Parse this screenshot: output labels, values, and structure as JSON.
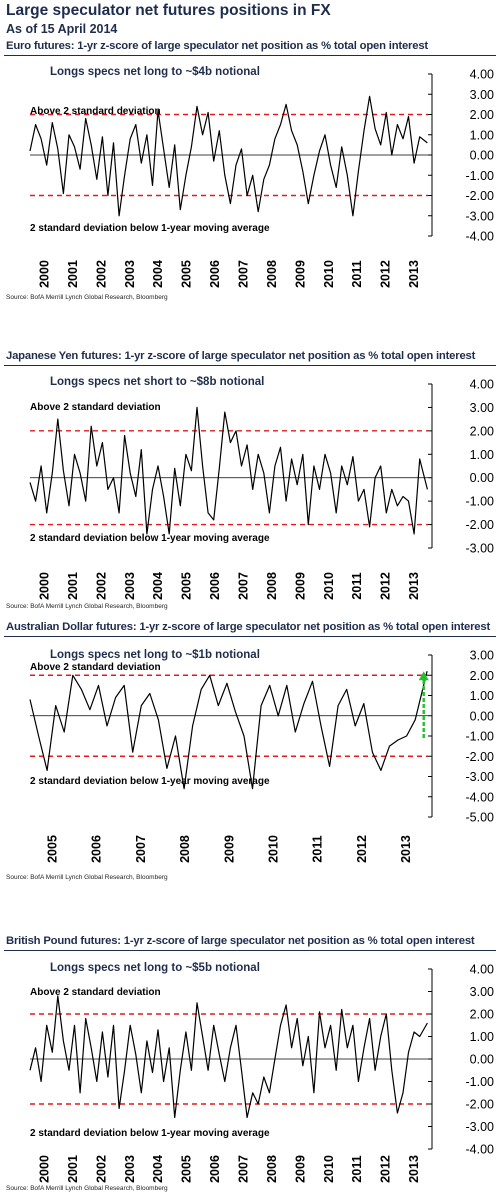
{
  "page": {
    "title": "Large speculator net futures positions in FX",
    "as_of": "As of 15 April 2014"
  },
  "colors": {
    "line": "#000000",
    "threshold": "#e41a1c",
    "arrow": "#22c02a",
    "title": "#1f2d4d"
  },
  "panels": [
    {
      "title": "Euro futures: 1-yr z-score of large speculator net position as % total open interest",
      "annotation": "Longs specs net long to ~$4b notional",
      "upper_label": "Above 2 standard deviation",
      "lower_label": "2 standard deviation below 1-year moving average",
      "source": "Source: BofA Merrill Lynch Global Research, Bloomberg"
    },
    {
      "title": "Japanese Yen futures: 1-yr z-score of large speculator net position as % total open interest",
      "annotation": "Longs specs net short to ~$8b notional",
      "upper_label": "Above 2 standard deviation",
      "lower_label": "2 standard deviation below 1-year moving average",
      "source": "Source: BofA Merrill Lynch Global Research, Bloomberg"
    },
    {
      "title": "Australian Dollar futures: 1-yr z-score of large speculator net position as % total open interest",
      "annotation": "Longs specs net long to ~$1b notional",
      "upper_label": "Above 2 standard deviation",
      "lower_label": "2 standard deviation below 1-year moving average",
      "source": "Source: BofA Merrill Lynch Global Research, Bloomberg"
    },
    {
      "title": "British Pound futures: 1-yr z-score of large speculator net position as % total open interest",
      "annotation": "Longs specs net long to ~$5b notional",
      "upper_label": "Above 2 standard deviation",
      "lower_label": "2 standard deviation below 1-year moving average",
      "source": "Source: BofA Merrill Lynch Global Research, Bloomberg"
    }
  ],
  "chart_data": [
    {
      "type": "line",
      "title": "Euro futures: 1-yr z-score of large speculator net position as % total open interest",
      "ylim": [
        -4,
        4
      ],
      "yticks": [
        4,
        3,
        2,
        1,
        0,
        -1,
        -2,
        -3,
        -4
      ],
      "ytick_labels": [
        "4.00",
        "3.00",
        "2.00",
        "1.00",
        "0.00",
        "-1.00",
        "-2.00",
        "-3.00",
        "-4.00"
      ],
      "xlim": [
        2000,
        2014.3
      ],
      "xtick_labels": [
        "2000",
        "2001",
        "2002",
        "2003",
        "2004",
        "2005",
        "2006",
        "2007",
        "2008",
        "2009",
        "2010",
        "2011",
        "2012",
        "2013"
      ],
      "thresholds": [
        2,
        -2
      ],
      "series": [
        {
          "x": [
            2000.0,
            2000.2,
            2000.4,
            2000.6,
            2000.8,
            2001.0,
            2001.2,
            2001.4,
            2001.6,
            2001.8,
            2002.0,
            2002.2,
            2002.4,
            2002.6,
            2002.8,
            2003.0,
            2003.2,
            2003.4,
            2003.6,
            2003.8,
            2004.0,
            2004.2,
            2004.4,
            2004.6,
            2004.8,
            2005.0,
            2005.2,
            2005.4,
            2005.6,
            2005.8,
            2006.0,
            2006.2,
            2006.4,
            2006.6,
            2006.8,
            2007.0,
            2007.2,
            2007.4,
            2007.6,
            2007.8,
            2008.0,
            2008.2,
            2008.4,
            2008.6,
            2008.8,
            2009.0,
            2009.2,
            2009.4,
            2009.6,
            2009.8,
            2010.0,
            2010.2,
            2010.4,
            2010.6,
            2010.8,
            2011.0,
            2011.2,
            2011.4,
            2011.6,
            2011.8,
            2012.0,
            2012.2,
            2012.4,
            2012.6,
            2012.8,
            2013.0,
            2013.2,
            2013.4,
            2013.6,
            2013.8,
            2014.0,
            2014.28
          ],
          "y": [
            0.2,
            1.5,
            0.8,
            -0.5,
            1.6,
            0.3,
            -1.9,
            1.0,
            0.4,
            -0.7,
            1.8,
            0.5,
            -1.2,
            0.9,
            -2.0,
            0.6,
            -3.0,
            -1.0,
            0.8,
            1.5,
            -0.4,
            1.0,
            -1.5,
            2.2,
            0.3,
            -1.6,
            0.5,
            -2.7,
            -1.0,
            0.4,
            2.4,
            1.0,
            2.1,
            -0.3,
            1.2,
            -1.0,
            -2.4,
            -0.5,
            0.3,
            -2.0,
            -1.0,
            -2.8,
            -1.2,
            -0.5,
            0.8,
            1.5,
            2.5,
            1.2,
            0.5,
            -0.8,
            -2.4,
            -1.0,
            0.2,
            1.0,
            -0.5,
            -1.6,
            0.4,
            -1.0,
            -3.0,
            -0.8,
            1.2,
            2.9,
            1.3,
            0.5,
            2.1,
            0.0,
            1.5,
            0.8,
            1.9,
            -0.4,
            0.9,
            0.6
          ]
        }
      ]
    },
    {
      "type": "line",
      "title": "Japanese Yen futures: 1-yr z-score of large speculator net position as % total open interest",
      "ylim": [
        -3,
        4
      ],
      "yticks": [
        4,
        3,
        2,
        1,
        0,
        -1,
        -2,
        -3
      ],
      "ytick_labels": [
        "4.00",
        "3.00",
        "2.00",
        "1.00",
        "0.00",
        "-1.00",
        "-2.00",
        "-3.00"
      ],
      "xlim": [
        2000,
        2014.3
      ],
      "xtick_labels": [
        "2000",
        "2001",
        "2002",
        "2003",
        "2004",
        "2005",
        "2006",
        "2007",
        "2008",
        "2009",
        "2010",
        "2011",
        "2012",
        "2013"
      ],
      "thresholds": [
        2,
        -2
      ],
      "series": [
        {
          "x": [
            2000.0,
            2000.2,
            2000.4,
            2000.6,
            2000.8,
            2001.0,
            2001.2,
            2001.4,
            2001.6,
            2001.8,
            2002.0,
            2002.2,
            2002.4,
            2002.6,
            2002.8,
            2003.0,
            2003.2,
            2003.4,
            2003.6,
            2003.8,
            2004.0,
            2004.2,
            2004.4,
            2004.6,
            2004.8,
            2005.0,
            2005.2,
            2005.4,
            2005.6,
            2005.8,
            2006.0,
            2006.2,
            2006.4,
            2006.6,
            2006.8,
            2007.0,
            2007.2,
            2007.4,
            2007.6,
            2007.8,
            2008.0,
            2008.2,
            2008.4,
            2008.6,
            2008.8,
            2009.0,
            2009.2,
            2009.4,
            2009.6,
            2009.8,
            2010.0,
            2010.2,
            2010.4,
            2010.6,
            2010.8,
            2011.0,
            2011.2,
            2011.4,
            2011.6,
            2011.8,
            2012.0,
            2012.2,
            2012.4,
            2012.6,
            2012.8,
            2013.0,
            2013.2,
            2013.4,
            2013.6,
            2013.8,
            2014.0,
            2014.28
          ],
          "y": [
            -0.2,
            -1.0,
            0.5,
            -1.5,
            0.2,
            2.5,
            0.3,
            -1.2,
            1.0,
            0.2,
            -1.0,
            2.2,
            0.5,
            1.5,
            -0.5,
            0.0,
            -1.5,
            1.8,
            0.2,
            -0.8,
            1.2,
            -2.4,
            -0.5,
            0.5,
            -0.8,
            -2.4,
            0.4,
            -1.2,
            1.0,
            0.3,
            3.0,
            0.5,
            -1.5,
            -1.8,
            0.4,
            2.8,
            1.5,
            2.0,
            0.5,
            1.4,
            -0.5,
            1.0,
            0.2,
            -1.5,
            0.5,
            1.3,
            -1.0,
            0.8,
            -0.3,
            1.0,
            -2.0,
            0.5,
            -0.5,
            1.0,
            0.2,
            -1.5,
            0.5,
            -0.3,
            0.9,
            -1.0,
            -0.5,
            -2.1,
            0.0,
            0.5,
            -1.5,
            -0.5,
            -1.2,
            -0.8,
            -1.0,
            -2.4,
            0.8,
            -0.5
          ]
        }
      ]
    },
    {
      "type": "line",
      "title": "Australian Dollar futures: 1-yr z-score of large speculator net position as % total open interest",
      "ylim": [
        -5,
        3
      ],
      "yticks": [
        3,
        2,
        1,
        0,
        -1,
        -2,
        -3,
        -4,
        -5
      ],
      "ytick_labels": [
        "3.00",
        "2.00",
        "1.00",
        "0.00",
        "-1.00",
        "-2.00",
        "-3.00",
        "-4.00",
        "-5.00"
      ],
      "xlim": [
        2005,
        2014.3
      ],
      "xtick_labels": [
        "2005",
        "2006",
        "2007",
        "2008",
        "2009",
        "2010",
        "2011",
        "2012",
        "2013"
      ],
      "thresholds": [
        2,
        -2
      ],
      "arrow": {
        "from": -1.1,
        "to": 2.1
      },
      "series": [
        {
          "x": [
            2005.0,
            2005.2,
            2005.4,
            2005.6,
            2005.8,
            2006.0,
            2006.2,
            2006.4,
            2006.6,
            2006.8,
            2007.0,
            2007.2,
            2007.4,
            2007.6,
            2007.8,
            2008.0,
            2008.2,
            2008.4,
            2008.6,
            2008.8,
            2009.0,
            2009.2,
            2009.4,
            2009.6,
            2009.8,
            2010.0,
            2010.2,
            2010.4,
            2010.6,
            2010.8,
            2011.0,
            2011.2,
            2011.4,
            2011.6,
            2011.8,
            2012.0,
            2012.2,
            2012.4,
            2012.6,
            2012.8,
            2013.0,
            2013.2,
            2013.4,
            2013.6,
            2013.8,
            2014.0,
            2014.28
          ],
          "y": [
            0.8,
            -1.0,
            -2.7,
            0.5,
            -0.8,
            2.0,
            1.3,
            0.3,
            1.5,
            -0.5,
            0.9,
            1.5,
            -1.8,
            0.5,
            1.1,
            -0.2,
            -2.6,
            -1.0,
            -3.6,
            -0.5,
            1.3,
            2.0,
            0.5,
            1.6,
            0.2,
            -1.0,
            -3.6,
            0.5,
            1.5,
            0.0,
            1.5,
            -0.8,
            0.6,
            1.7,
            -0.5,
            -2.5,
            0.5,
            1.3,
            -0.5,
            0.6,
            -1.8,
            -2.7,
            -1.5,
            -1.2,
            -1.0,
            -0.2,
            2.2
          ]
        }
      ]
    },
    {
      "type": "line",
      "title": "British Pound futures: 1-yr z-score of large speculator net position as % total open interest",
      "ylim": [
        -4,
        4
      ],
      "yticks": [
        4,
        3,
        2,
        1,
        0,
        -1,
        -2,
        -3,
        -4
      ],
      "ytick_labels": [
        "4.00",
        "3.00",
        "2.00",
        "1.00",
        "0.00",
        "-1.00",
        "-2.00",
        "-3.00",
        "-4.00"
      ],
      "xlim": [
        2000,
        2014.3
      ],
      "xtick_labels": [
        "2000",
        "2001",
        "2002",
        "2003",
        "2004",
        "2005",
        "2006",
        "2007",
        "2008",
        "2009",
        "2010",
        "2011",
        "2012",
        "2013"
      ],
      "thresholds": [
        2,
        -2
      ],
      "series": [
        {
          "x": [
            2000.0,
            2000.2,
            2000.4,
            2000.6,
            2000.8,
            2001.0,
            2001.2,
            2001.4,
            2001.6,
            2001.8,
            2002.0,
            2002.2,
            2002.4,
            2002.6,
            2002.8,
            2003.0,
            2003.2,
            2003.4,
            2003.6,
            2003.8,
            2004.0,
            2004.2,
            2004.4,
            2004.6,
            2004.8,
            2005.0,
            2005.2,
            2005.4,
            2005.6,
            2005.8,
            2006.0,
            2006.2,
            2006.4,
            2006.6,
            2006.8,
            2007.0,
            2007.2,
            2007.4,
            2007.6,
            2007.8,
            2008.0,
            2008.2,
            2008.4,
            2008.6,
            2008.8,
            2009.0,
            2009.2,
            2009.4,
            2009.6,
            2009.8,
            2010.0,
            2010.2,
            2010.4,
            2010.6,
            2010.8,
            2011.0,
            2011.2,
            2011.4,
            2011.6,
            2011.8,
            2012.0,
            2012.2,
            2012.4,
            2012.6,
            2012.8,
            2013.0,
            2013.2,
            2013.4,
            2013.6,
            2013.8,
            2014.0,
            2014.28
          ],
          "y": [
            -0.5,
            0.5,
            -1.0,
            1.5,
            0.3,
            2.8,
            0.8,
            -0.5,
            1.5,
            -1.5,
            1.8,
            0.5,
            -1.0,
            1.2,
            -0.8,
            1.5,
            -2.2,
            -0.5,
            1.5,
            0.2,
            -1.5,
            0.8,
            -0.6,
            1.3,
            -1.0,
            0.5,
            -2.6,
            -0.5,
            1.2,
            -0.5,
            2.5,
            1.0,
            -0.5,
            1.5,
            0.2,
            -1.0,
            0.5,
            1.5,
            -0.5,
            -2.6,
            -1.5,
            -2.0,
            -0.8,
            -1.5,
            0.0,
            1.5,
            2.4,
            0.5,
            1.8,
            -0.3,
            1.0,
            -1.5,
            2.1,
            0.5,
            1.5,
            -0.5,
            2.2,
            0.5,
            1.5,
            -1.0,
            0.5,
            1.8,
            -0.5,
            1.0,
            2.0,
            -0.5,
            -2.4,
            -1.5,
            0.3,
            1.2,
            1.0,
            1.6
          ]
        }
      ]
    }
  ]
}
